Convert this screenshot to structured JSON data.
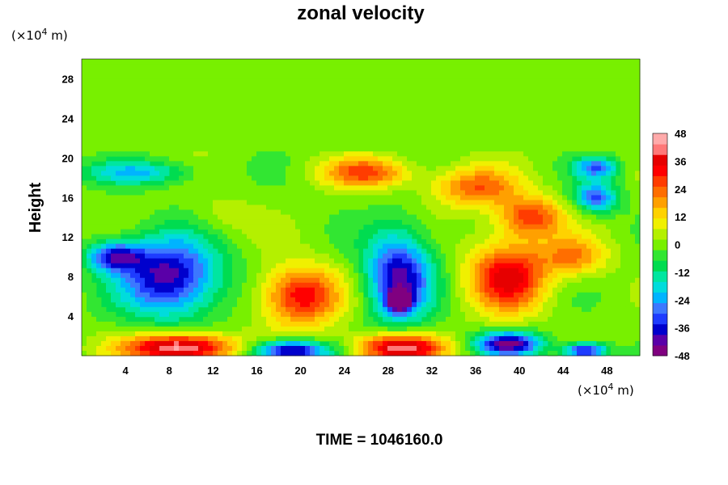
{
  "chart_data": {
    "type": "heatmap",
    "title": "zonal velocity",
    "ylabel": "Height",
    "xlabel": "",
    "x_unit": "(×10",
    "x_unit_exp": "4",
    "x_unit_tail": " m)",
    "y_unit": "(×10",
    "y_unit_exp": "4",
    "y_unit_tail": " m)",
    "xlim": [
      0,
      51
    ],
    "ylim": [
      0,
      30
    ],
    "x_ticks": [
      4,
      8,
      12,
      16,
      20,
      24,
      28,
      32,
      36,
      40,
      44,
      48
    ],
    "y_ticks": [
      4,
      8,
      12,
      16,
      20,
      24,
      28
    ],
    "colorbar": {
      "min": -48,
      "max": 48,
      "ticks": [
        48,
        36,
        24,
        12,
        0,
        -12,
        -24,
        -36,
        -48
      ],
      "colors": [
        "#800080",
        "#5a00a8",
        "#0000cd",
        "#1e3cff",
        "#3c78ff",
        "#00b4ff",
        "#00dcdc",
        "#00e6a0",
        "#00dc50",
        "#32e632",
        "#78f000",
        "#b4f000",
        "#f0f000",
        "#ffd200",
        "#ffa000",
        "#ff6e00",
        "#ff3c00",
        "#ff0000",
        "#e60000",
        "#ff7878",
        "#ffaaaa"
      ]
    },
    "background_value": 0,
    "features": [
      {
        "x": 8,
        "y": 8,
        "rx": 4.5,
        "ry": 4,
        "value": -42
      },
      {
        "x": 3,
        "y": 10,
        "rx": 2.5,
        "ry": 1.5,
        "value": -34
      },
      {
        "x": 29,
        "y": 8,
        "rx": 3,
        "ry": 4.5,
        "value": -40
      },
      {
        "x": 29,
        "y": 5.5,
        "rx": 1,
        "ry": 1,
        "value": -46
      },
      {
        "x": 20,
        "y": 6,
        "rx": 3.5,
        "ry": 3,
        "value": 34
      },
      {
        "x": 39,
        "y": 8,
        "rx": 3.5,
        "ry": 3.5,
        "value": 36
      },
      {
        "x": 45,
        "y": 10,
        "rx": 3,
        "ry": 2,
        "value": 20
      },
      {
        "x": 36,
        "y": 17,
        "rx": 4,
        "ry": 2,
        "value": 24
      },
      {
        "x": 26,
        "y": 18.5,
        "rx": 4,
        "ry": 1.5,
        "value": 26
      },
      {
        "x": 41,
        "y": 14,
        "rx": 3,
        "ry": 2,
        "value": 28
      },
      {
        "x": 9,
        "y": 0.8,
        "rx": 5,
        "ry": 1.4,
        "value": 48
      },
      {
        "x": 29,
        "y": 0.8,
        "rx": 4,
        "ry": 1.4,
        "value": 44
      },
      {
        "x": 19,
        "y": 0.5,
        "rx": 3.5,
        "ry": 1.0,
        "value": -46
      },
      {
        "x": 39,
        "y": 1.2,
        "rx": 3,
        "ry": 1.2,
        "value": -44
      },
      {
        "x": 46,
        "y": 0.5,
        "rx": 2,
        "ry": 0.8,
        "value": -40
      },
      {
        "x": 47,
        "y": 16,
        "rx": 2,
        "ry": 1.5,
        "value": -30
      },
      {
        "x": 47,
        "y": 19,
        "rx": 2,
        "ry": 1,
        "value": -28
      },
      {
        "x": 5,
        "y": 18.5,
        "rx": 5,
        "ry": 1.2,
        "value": -20
      },
      {
        "x": 13,
        "y": 14,
        "rx": 3,
        "ry": 2,
        "value": 6
      }
    ],
    "upper_level_y": 20.5
  },
  "footer": {
    "label": "TIME = 1046160.0"
  }
}
